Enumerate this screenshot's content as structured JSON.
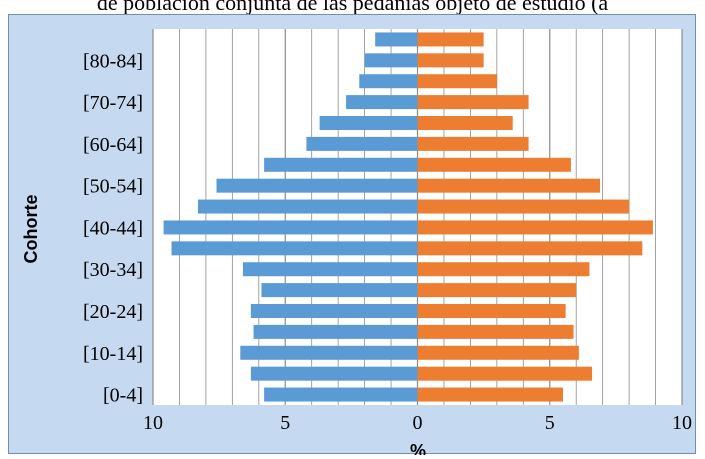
{
  "caption": "de población conjunta de las pedanías objeto de estudio (a",
  "colors": {
    "left_series": "#5b9bd5",
    "right_series": "#ed7d31",
    "plot_background": "#ffffff",
    "frame_background": "#c5d9f1",
    "grid": "#8c8c8c"
  },
  "chart_data": {
    "type": "bar",
    "orientation": "horizontal",
    "xlabel": "%",
    "ylabel": "Cohorte",
    "xlim": [
      -10,
      10
    ],
    "x_ticks": [
      -10,
      -5,
      0,
      5,
      10
    ],
    "x_tick_labels": [
      "10",
      "5",
      "0",
      "5",
      "10"
    ],
    "categories": [
      "[0-4]",
      "[5-9]",
      "[10-14]",
      "[15-19]",
      "[20-24]",
      "[25-29]",
      "[30-34]",
      "[35-39]",
      "[40-44]",
      "[45-49]",
      "[50-54]",
      "[55-59]",
      "[60-64]",
      "[65-69]",
      "[70-74]",
      "[75-79]",
      "[80-84]",
      "[85+]"
    ],
    "visible_category_labels": [
      "[0-4]",
      "[10-14]",
      "[20-24]",
      "[30-34]",
      "[40-44]",
      "[50-54]",
      "[60-64]",
      "[70-74]",
      "[80-84]"
    ],
    "series": [
      {
        "side": "left",
        "values": [
          5.8,
          6.3,
          6.7,
          6.2,
          6.3,
          5.9,
          6.6,
          9.3,
          9.6,
          8.3,
          7.6,
          5.8,
          4.2,
          3.7,
          2.7,
          2.2,
          2.0,
          1.6
        ]
      },
      {
        "side": "right",
        "values": [
          5.5,
          6.6,
          6.1,
          5.9,
          5.6,
          6.0,
          6.5,
          8.5,
          8.9,
          8.0,
          6.9,
          5.8,
          4.2,
          3.6,
          4.2,
          3.0,
          2.5,
          2.5
        ]
      }
    ],
    "grid": true
  }
}
